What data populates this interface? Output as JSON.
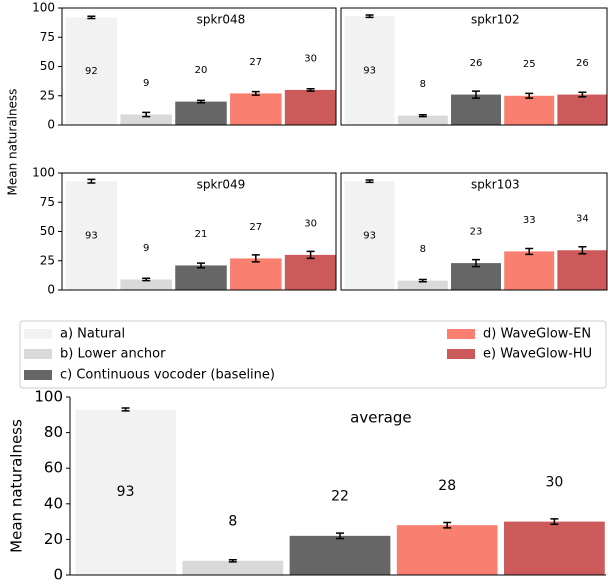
{
  "ylabel": "Mean naturalness",
  "legend": {
    "items": [
      {
        "label": "a) Natural",
        "color": "#f2f2f2"
      },
      {
        "label": "b) Lower anchor",
        "color": "#d9d9d9"
      },
      {
        "label": "c) Continuous vocoder (baseline)",
        "color": "#666666"
      },
      {
        "label": "d) WaveGlow-EN",
        "color": "#f98070"
      },
      {
        "label": "e) WaveGlow-HU",
        "color": "#cc5a5a"
      }
    ]
  },
  "chart_data": [
    {
      "type": "bar",
      "title": "spkr048",
      "values": [
        92,
        9,
        20,
        27,
        30
      ],
      "errors": [
        1,
        1.8,
        1,
        1.5,
        1
      ],
      "ylim": [
        0,
        100
      ],
      "yticks": [
        0,
        25,
        50,
        75,
        100
      ]
    },
    {
      "type": "bar",
      "title": "spkr102",
      "values": [
        93,
        8,
        26,
        25,
        26
      ],
      "errors": [
        1,
        0.8,
        3,
        2,
        2
      ],
      "ylim": [
        0,
        100
      ]
    },
    {
      "type": "bar",
      "title": "spkr049",
      "values": [
        93,
        9,
        21,
        27,
        30
      ],
      "errors": [
        1.5,
        1,
        2,
        3,
        3
      ],
      "ylim": [
        0,
        100
      ],
      "yticks": [
        0,
        25,
        50,
        75,
        100
      ]
    },
    {
      "type": "bar",
      "title": "spkr103",
      "values": [
        93,
        8,
        23,
        33,
        34
      ],
      "errors": [
        1,
        1,
        3,
        2.5,
        3
      ],
      "ylim": [
        0,
        100
      ]
    },
    {
      "type": "bar",
      "title": "average",
      "ylabel": "Mean naturalness",
      "values": [
        93,
        8,
        22,
        28,
        30
      ],
      "errors": [
        0.8,
        0.6,
        1.5,
        1.5,
        1.5
      ],
      "ylim": [
        0,
        100
      ],
      "yticks": [
        0,
        20,
        40,
        60,
        80,
        100
      ]
    }
  ]
}
